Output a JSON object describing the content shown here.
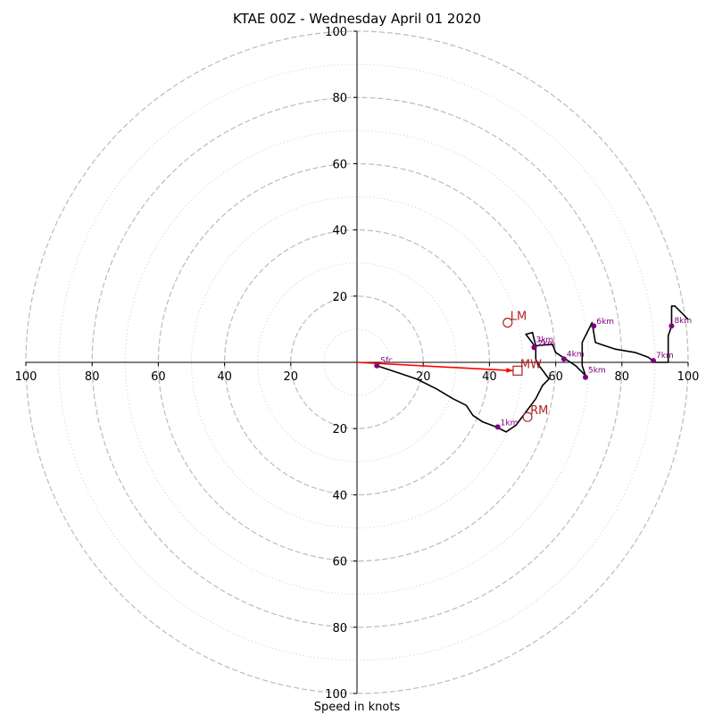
{
  "chart_data": {
    "type": "hodograph",
    "title": "KTAE 00Z - Wednesday April 01 2020",
    "xlabel": "Speed in knots",
    "ylabel": "",
    "xlim": [
      -100,
      100
    ],
    "ylim": [
      -100,
      100
    ],
    "rings": {
      "dashed": [
        20,
        40,
        60,
        80,
        100
      ],
      "dotted": [
        10,
        30,
        50,
        70,
        90
      ]
    },
    "tick_values": [
      100,
      80,
      60,
      40,
      20
    ],
    "x_tick_labels": [
      "100",
      "80",
      "60",
      "40",
      "20",
      "20",
      "40",
      "60",
      "80",
      "100"
    ],
    "y_tick_labels_top": [
      "100",
      "80",
      "60",
      "40",
      "20"
    ],
    "y_tick_labels_bottom": [
      "20",
      "40",
      "60",
      "80",
      "100"
    ],
    "trace": {
      "color": "#000000",
      "points": [
        [
          6,
          -1
        ],
        [
          12,
          -3
        ],
        [
          18,
          -5
        ],
        [
          24,
          -8
        ],
        [
          29,
          -11
        ],
        [
          33,
          -13
        ],
        [
          35,
          -16
        ],
        [
          38,
          -18
        ],
        [
          42,
          -19.5
        ],
        [
          45,
          -21
        ],
        [
          48,
          -19
        ],
        [
          51,
          -15
        ],
        [
          54,
          -11
        ],
        [
          56,
          -7
        ],
        [
          58,
          -5
        ],
        [
          55,
          -1
        ],
        [
          54,
          1
        ],
        [
          54,
          4.5
        ],
        [
          51,
          8.5
        ],
        [
          53,
          9
        ],
        [
          54,
          5
        ],
        [
          59,
          5.5
        ],
        [
          60,
          3
        ],
        [
          63,
          1
        ],
        [
          66,
          -1
        ],
        [
          68,
          -3
        ],
        [
          69,
          -4
        ],
        [
          68,
          -1
        ],
        [
          68,
          6
        ],
        [
          71,
          12
        ],
        [
          72,
          6
        ],
        [
          78,
          4
        ],
        [
          84,
          3
        ],
        [
          88,
          1.5
        ],
        [
          90,
          0
        ],
        [
          93,
          0
        ],
        [
          94,
          0
        ],
        [
          94,
          8
        ],
        [
          95,
          11
        ],
        [
          95,
          17
        ],
        [
          96,
          17
        ],
        [
          100,
          13
        ]
      ]
    },
    "height_markers": {
      "color": "#800080",
      "points": [
        {
          "label": "Sfc",
          "u": 6,
          "v": -1
        },
        {
          "label": "1km",
          "u": 42.5,
          "v": -19.5
        },
        {
          "label": "2km",
          "u": 53.5,
          "v": 4.5
        },
        {
          "label": "3km",
          "u": 53.5,
          "v": 4.5
        },
        {
          "label": "4km",
          "u": 62.5,
          "v": 1
        },
        {
          "label": "5km",
          "u": 69,
          "v": -4.5
        },
        {
          "label": "6km",
          "u": 71.5,
          "v": 11
        },
        {
          "label": "7km",
          "u": 89.5,
          "v": 0.5
        },
        {
          "label": "8km",
          "u": 95,
          "v": 11
        }
      ]
    },
    "motion": {
      "color": "#b22222",
      "lm": {
        "label": "LM",
        "u": 45.5,
        "v": 12
      },
      "rm": {
        "label": "RM",
        "u": 51.5,
        "v": -16.5
      },
      "mw": {
        "label": "MW",
        "u": 48.5,
        "v": -2.5
      }
    },
    "shear_vector_color": "#ff0000"
  }
}
